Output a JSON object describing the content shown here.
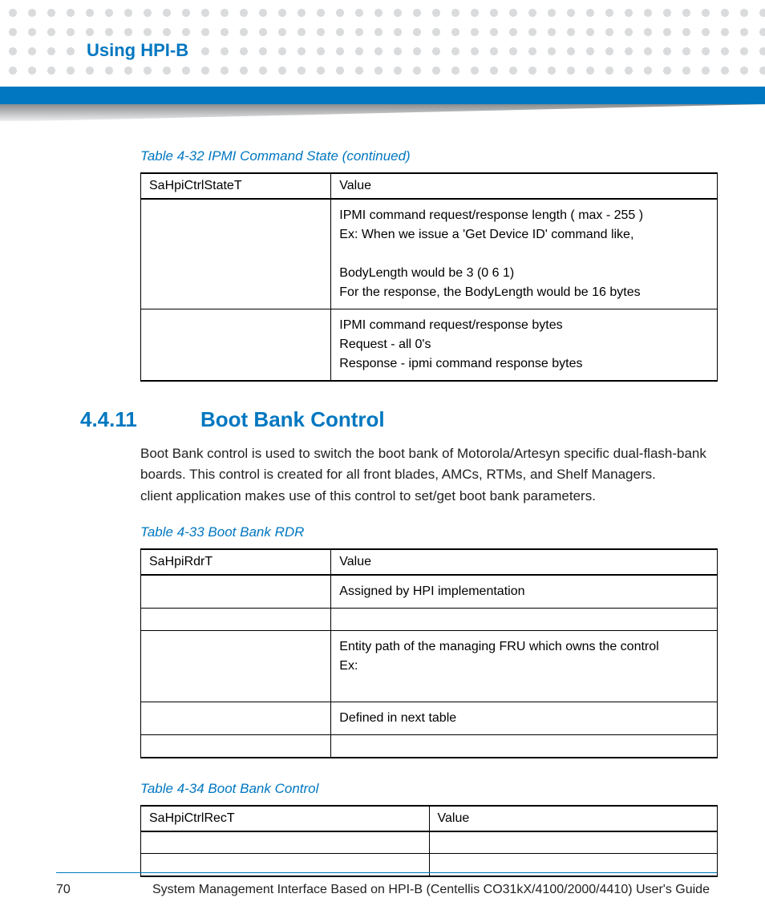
{
  "colors": {
    "accent": "#0077c0",
    "dot": "#d9dbdc",
    "wedge_top": "#8a8c8e",
    "text": "#222222"
  },
  "header": {
    "title": "Using HPI-B"
  },
  "table32": {
    "caption": "Table 4-32 IPMI Command State (continued)",
    "head": [
      "SaHpiCtrlStateT",
      "Value"
    ],
    "rows": [
      {
        "a": "",
        "b": "IPMI command request/response length ( max - 255 )\nEx: When we issue a 'Get Device ID' command like,\n\nBodyLength would be 3 (0 6 1)\nFor the response, the BodyLength would be 16 bytes"
      },
      {
        "a": "",
        "b": "IPMI command request/response bytes\nRequest - all 0's\nResponse - ipmi command response bytes"
      }
    ]
  },
  "section": {
    "number": "4.4.11",
    "title": "Boot Bank Control",
    "body": "Boot Bank control is used to switch the boot bank of Motorola/Artesyn specific dual-flash-bank boards. This control is created for all front blades, AMCs, RTMs, and Shelf Managers.\n                                            client application makes use of this control to set/get boot bank parameters."
  },
  "table33": {
    "caption": "Table 4-33 Boot Bank RDR",
    "head": [
      "SaHpiRdrT",
      "Value"
    ],
    "rows": [
      {
        "a": "",
        "b": "Assigned by HPI implementation"
      },
      {
        "a": "",
        "b": ""
      },
      {
        "a": "",
        "b": "Entity path of the managing FRU which owns the control\nEx:\n "
      },
      {
        "a": "",
        "b": "Defined in next table"
      },
      {
        "a": "",
        "b": ""
      }
    ]
  },
  "table34": {
    "caption": "Table 4-34 Boot Bank Control",
    "head": [
      "SaHpiCtrlRecT",
      "Value"
    ],
    "rows": [
      {
        "a": "",
        "b": ""
      },
      {
        "a": "",
        "b": ""
      }
    ]
  },
  "footer": {
    "page": "70",
    "doc_title": "System Management Interface Based on HPI-B (Centellis CO31kX/4100/2000/4410) User's Guide"
  }
}
